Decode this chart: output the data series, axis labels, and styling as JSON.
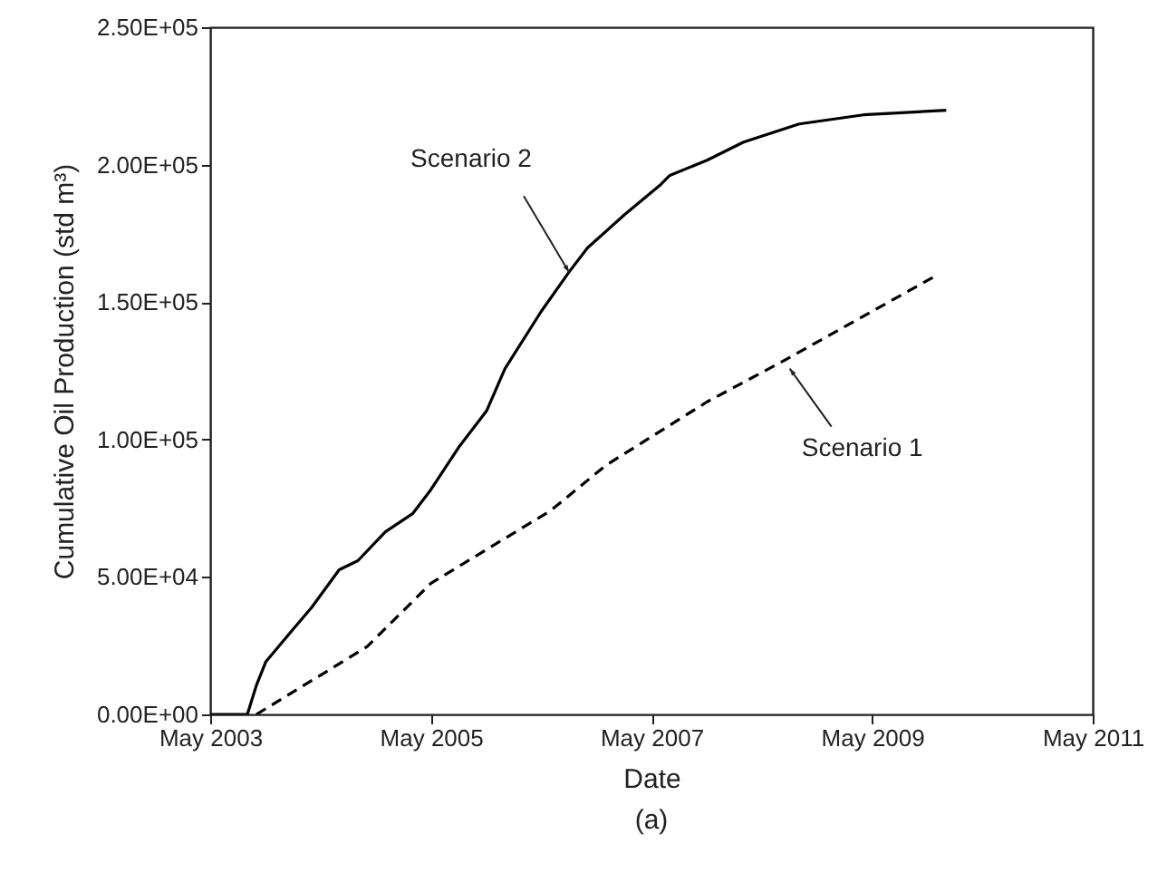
{
  "chart_data": {
    "type": "line",
    "xlabel": "Date",
    "ylabel": "Cumulative Oil Production (std m³)",
    "xlim": [
      "2003-05",
      "2011-05"
    ],
    "xticks": [
      {
        "value": "2003-05",
        "label": "May 2003"
      },
      {
        "value": "2005-05",
        "label": "May 2005"
      },
      {
        "value": "2007-05",
        "label": "May 2007"
      },
      {
        "value": "2009-05",
        "label": "May 2009"
      },
      {
        "value": "2011-05",
        "label": "May 2011"
      }
    ],
    "ylim": [
      0,
      250000
    ],
    "yticks": [
      {
        "value": 0,
        "label": "0.00E+00"
      },
      {
        "value": 50000,
        "label": "5.00E+04"
      },
      {
        "value": 100000,
        "label": "1.00E+05"
      },
      {
        "value": 150000,
        "label": "1.50E+05"
      },
      {
        "value": 200000,
        "label": "2.00E+05"
      },
      {
        "value": 250000,
        "label": "2.50E+05"
      }
    ],
    "series": [
      {
        "color": "#000000",
        "line_style": "dashed",
        "x": [
          "2003-10",
          "2004-10",
          "2005-05",
          "2006-06",
          "2006-12",
          "2007-11",
          "2008-07",
          "2009-12"
        ],
        "values": [
          0,
          24600,
          47700,
          74100,
          90600,
          113700,
          128000,
          159800
        ]
      },
      {
        "color": "#000000",
        "line_style": "solid",
        "x": [
          "2003-05",
          "2003-09",
          "2003-10",
          "2003-11",
          "2004-02",
          "2004-04",
          "2004-07",
          "2004-09",
          "2004-12",
          "2005-03",
          "2005-05",
          "2005-08",
          "2005-11",
          "2006-01",
          "2006-05",
          "2006-08",
          "2006-10",
          "2007-02",
          "2007-06",
          "2007-07",
          "2007-11",
          "2008-03",
          "2008-09",
          "2009-04",
          "2010-01"
        ],
        "values": [
          0,
          0,
          10600,
          19100,
          31200,
          38900,
          52600,
          55900,
          66400,
          73000,
          81800,
          97200,
          110400,
          125800,
          146600,
          160900,
          169700,
          181800,
          192800,
          196100,
          201600,
          208200,
          214800,
          218100,
          219800
        ]
      }
    ],
    "annotations": [
      {
        "text": "Scenario 2",
        "x": "2006-08",
        "y": 160900
      },
      {
        "text": "Scenario 1",
        "x": "2008-08",
        "y": 125800
      },
      "(a)"
    ]
  }
}
